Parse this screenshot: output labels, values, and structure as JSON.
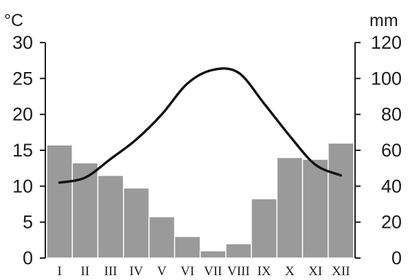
{
  "chart_data": {
    "type": "climate-diagram",
    "categories": [
      "I",
      "II",
      "III",
      "IV",
      "V",
      "VI",
      "VII",
      "VIII",
      "IX",
      "X",
      "XI",
      "XII"
    ],
    "left_axis": {
      "unit": "°C",
      "ylim": [
        0,
        30
      ],
      "ticks": [
        "0",
        "5",
        "10",
        "15",
        "20",
        "25",
        "30"
      ]
    },
    "right_axis": {
      "unit": "mm",
      "ylim": [
        0,
        120
      ],
      "ticks": [
        "0",
        "20",
        "40",
        "60",
        "80",
        "100",
        "120"
      ]
    },
    "series": [
      {
        "type": "bar",
        "axis": "right",
        "values": [
          63,
          53,
          46,
          39,
          23,
          12,
          4,
          8,
          33,
          56,
          55,
          64
        ]
      },
      {
        "type": "line",
        "axis": "left",
        "values": [
          10.5,
          11.2,
          13.8,
          16.5,
          20.0,
          24.3,
          26.2,
          25.8,
          21.5,
          17.0,
          13.0,
          11.5
        ]
      }
    ],
    "grid": false,
    "legend": "none"
  }
}
